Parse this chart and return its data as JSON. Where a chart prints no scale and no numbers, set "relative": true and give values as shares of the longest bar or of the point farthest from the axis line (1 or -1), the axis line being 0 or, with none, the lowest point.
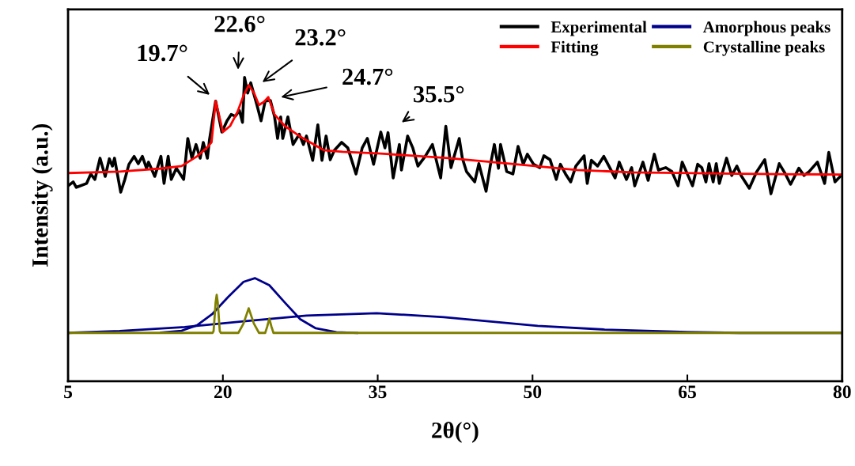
{
  "chart_data": {
    "type": "line",
    "xlabel": "2θ(°)",
    "ylabel": "Intensity (a.u.)",
    "relative": true,
    "xlim": [
      5,
      80
    ],
    "xticks": [
      5,
      20,
      35,
      50,
      65,
      80
    ],
    "tick_labels": "x",
    "grid": false,
    "legend": "top right",
    "marker": "none",
    "line_style": "solid",
    "series": [
      {
        "name": "Experimental",
        "color": "#000000",
        "x": [
          5.0,
          5.5,
          5.8,
          6.8,
          7.2,
          7.6,
          8.1,
          8.6,
          9.0,
          9.3,
          9.5,
          10.1,
          10.5,
          10.9,
          11.4,
          11.8,
          12.2,
          12.6,
          12.8,
          13.4,
          14.0,
          14.3,
          14.7,
          15.0,
          15.5,
          16.2,
          16.6,
          17.0,
          17.4,
          17.8,
          18.1,
          18.5,
          18.7,
          19.3,
          19.9,
          20.4,
          20.8,
          21.2,
          21.6,
          21.9,
          22.1,
          22.4,
          22.7,
          23.3,
          23.7,
          24.1,
          24.6,
          25.0,
          25.3,
          25.6,
          25.8,
          26.3,
          26.8,
          27.4,
          27.8,
          28.1,
          28.7,
          29.2,
          29.6,
          30.0,
          30.4,
          30.8,
          31.5,
          32.1,
          32.9,
          33.5,
          34.0,
          34.6,
          35.3,
          35.7,
          36.0,
          36.5,
          37.1,
          37.3,
          37.9,
          38.4,
          38.9,
          39.6,
          40.3,
          41.1,
          41.6,
          42.1,
          42.9,
          43.2,
          43.6,
          44.4,
          44.8,
          45.5,
          45.9,
          46.3,
          46.7,
          46.9,
          47.5,
          48.1,
          48.6,
          49.1,
          49.5,
          50.1,
          50.7,
          51.1,
          51.7,
          52.3,
          52.7,
          53.2,
          53.7,
          54.2,
          55.0,
          55.3,
          55.7,
          56.3,
          56.9,
          57.4,
          58.0,
          58.4,
          59.1,
          59.6,
          59.9,
          60.7,
          61.2,
          61.8,
          62.2,
          62.9,
          63.5,
          64.1,
          64.5,
          65.5,
          66.0,
          66.4,
          66.8,
          67.1,
          67.5,
          67.8,
          68.1,
          68.8,
          69.3,
          69.8,
          70.2,
          71.0,
          71.7,
          72.5,
          73.1,
          73.9,
          74.5,
          75.0,
          75.8,
          76.3,
          76.8,
          77.6,
          78.3,
          78.7,
          79.3,
          79.9
        ],
        "values": [
          0.643,
          0.656,
          0.638,
          0.651,
          0.682,
          0.664,
          0.734,
          0.674,
          0.732,
          0.708,
          0.734,
          0.622,
          0.664,
          0.714,
          0.74,
          0.716,
          0.74,
          0.701,
          0.721,
          0.674,
          0.74,
          0.651,
          0.74,
          0.664,
          0.701,
          0.664,
          0.799,
          0.734,
          0.779,
          0.734,
          0.786,
          0.734,
          0.794,
          0.922,
          0.82,
          0.857,
          0.878,
          0.872,
          0.891,
          0.852,
          1.0,
          0.948,
          0.982,
          0.909,
          0.857,
          0.922,
          0.924,
          0.872,
          0.799,
          0.87,
          0.799,
          0.87,
          0.779,
          0.813,
          0.779,
          0.807,
          0.727,
          0.844,
          0.727,
          0.807,
          0.729,
          0.76,
          0.786,
          0.768,
          0.682,
          0.768,
          0.799,
          0.714,
          0.82,
          0.768,
          0.818,
          0.669,
          0.779,
          0.695,
          0.807,
          0.768,
          0.708,
          0.74,
          0.779,
          0.669,
          0.839,
          0.703,
          0.799,
          0.734,
          0.69,
          0.656,
          0.716,
          0.625,
          0.708,
          0.779,
          0.701,
          0.779,
          0.69,
          0.682,
          0.773,
          0.714,
          0.747,
          0.714,
          0.703,
          0.742,
          0.729,
          0.664,
          0.714,
          0.682,
          0.656,
          0.708,
          0.742,
          0.651,
          0.727,
          0.708,
          0.74,
          0.708,
          0.669,
          0.721,
          0.664,
          0.703,
          0.643,
          0.721,
          0.661,
          0.747,
          0.695,
          0.703,
          0.69,
          0.643,
          0.721,
          0.643,
          0.714,
          0.703,
          0.656,
          0.716,
          0.656,
          0.716,
          0.651,
          0.734,
          0.677,
          0.708,
          0.677,
          0.635,
          0.688,
          0.729,
          0.617,
          0.716,
          0.682,
          0.648,
          0.701,
          0.677,
          0.69,
          0.721,
          0.651,
          0.753,
          0.656,
          0.677
        ]
      },
      {
        "name": "Fitting",
        "color": "#ff0000",
        "x": [
          5,
          10,
          14,
          16,
          17.5,
          18.5,
          18.9,
          19.3,
          19.6,
          20.0,
          20.7,
          21.4,
          22.0,
          22.5,
          23.0,
          23.5,
          24.0,
          24.4,
          25.0,
          26,
          27.5,
          29.8,
          31.6,
          35,
          41.9,
          48,
          54.3,
          59.7,
          70,
          80
        ],
        "values": [
          0.685,
          0.69,
          0.7,
          0.708,
          0.74,
          0.77,
          0.786,
          0.922,
          0.88,
          0.82,
          0.84,
          0.885,
          0.94,
          0.974,
          0.95,
          0.909,
          0.92,
          0.935,
          0.878,
          0.84,
          0.805,
          0.76,
          0.755,
          0.75,
          0.734,
          0.715,
          0.695,
          0.6875,
          0.683,
          0.68
        ]
      },
      {
        "name": "Amorphous peaks",
        "color": "#00008b",
        "x": [
          14,
          16,
          17.5,
          19,
          20.5,
          22,
          23.1,
          24.5,
          26,
          27.5,
          29,
          31,
          33
        ],
        "values": [
          0.16,
          0.166,
          0.184,
          0.222,
          0.277,
          0.327,
          0.339,
          0.316,
          0.259,
          0.204,
          0.174,
          0.161,
          0.159
        ]
      },
      {
        "color": "#00008b",
        "x": [
          5,
          10,
          16.3,
          22.2,
          28.1,
          34.9,
          41.4,
          50.5,
          57,
          65,
          70,
          80
        ],
        "values": [
          0.159,
          0.165,
          0.178,
          0.198,
          0.216,
          0.224,
          0.211,
          0.182,
          0.17,
          0.162,
          0.159,
          0.159
        ]
      },
      {
        "name": "Crystalline peaks",
        "color": "#808000",
        "x": [
          5,
          19.0,
          19.1,
          19.3,
          19.4,
          19.5,
          19.7,
          19.8,
          21.5,
          22.0,
          22.5,
          23.0,
          23.5,
          24.1,
          24.3,
          24.5,
          24.7,
          24.9,
          80
        ],
        "values": [
          0.159,
          0.159,
          0.165,
          0.26,
          0.284,
          0.26,
          0.165,
          0.159,
          0.159,
          0.19,
          0.24,
          0.19,
          0.159,
          0.159,
          0.18,
          0.206,
          0.18,
          0.159,
          0.159
        ]
      }
    ],
    "annotations": [
      "19.7°",
      "22.6°",
      "23.2°",
      "24.7°",
      "35.5°"
    ]
  }
}
